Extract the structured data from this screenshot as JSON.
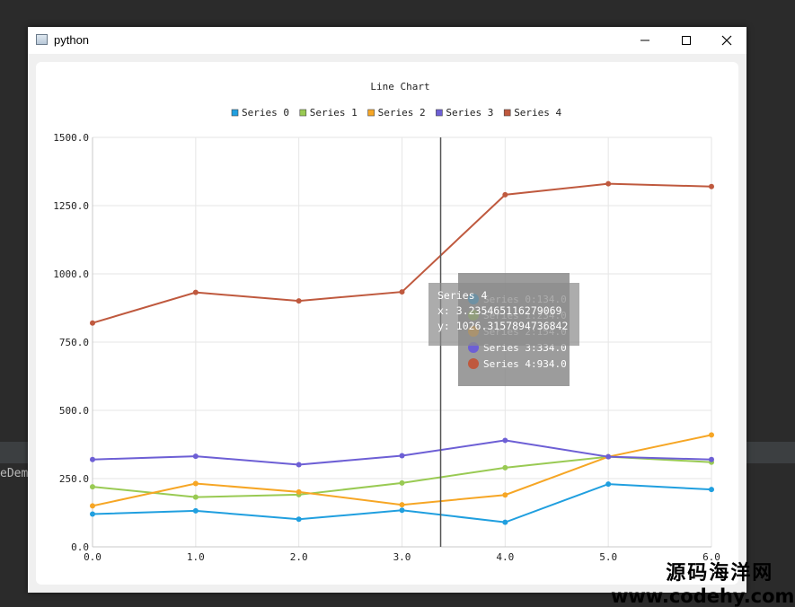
{
  "window": {
    "title": "python"
  },
  "ide": {
    "left_label": "eDemo"
  },
  "watermark": {
    "line1": "源码海洋网",
    "line2": "www.codehy.com"
  },
  "icons": {
    "app": "window-app-icon",
    "minimize": "minimize-icon",
    "maximize": "maximize-icon",
    "close": "close-icon"
  },
  "chart_data": {
    "type": "line",
    "title": "Line Chart",
    "legend_position": "top",
    "grid": true,
    "xlim": [
      0,
      6
    ],
    "ylim": [
      0,
      1500
    ],
    "x": [
      0,
      1,
      2,
      3,
      4,
      5,
      6
    ],
    "x_tick_labels": [
      "0.0",
      "1.0",
      "2.0",
      "3.0",
      "4.0",
      "5.0",
      "6.0"
    ],
    "y_ticks": [
      0,
      250,
      500,
      750,
      1000,
      1250,
      1500
    ],
    "y_tick_labels": [
      "0.0",
      "250.0",
      "500.0",
      "750.0",
      "1000.0",
      "1250.0",
      "1500.0"
    ],
    "series": [
      {
        "name": "Series 0",
        "color": "#209fdf",
        "values": [
          120,
          132,
          101,
          134,
          90,
          230,
          210
        ]
      },
      {
        "name": "Series 1",
        "color": "#99ca53",
        "values": [
          220,
          182,
          191,
          234,
          290,
          330,
          310
        ]
      },
      {
        "name": "Series 2",
        "color": "#f6a625",
        "values": [
          150,
          232,
          201,
          154,
          190,
          330,
          410
        ]
      },
      {
        "name": "Series 3",
        "color": "#6d5fd5",
        "values": [
          320,
          332,
          301,
          334,
          390,
          330,
          320
        ]
      },
      {
        "name": "Series 4",
        "color": "#bf593e",
        "values": [
          820,
          932,
          901,
          934,
          1290,
          1330,
          1320
        ]
      }
    ],
    "crosshair_x": 3.3746,
    "tooltip": {
      "title": "Series 4",
      "x_text": "x: 3.235465116279069",
      "y_text": "y: 1026.3157894736842",
      "entries": [
        "Series 0:134.0",
        "Series 1:234.0",
        "Series 2:154.0",
        "Series 3:334.0",
        "Series 4:934.0"
      ]
    }
  }
}
